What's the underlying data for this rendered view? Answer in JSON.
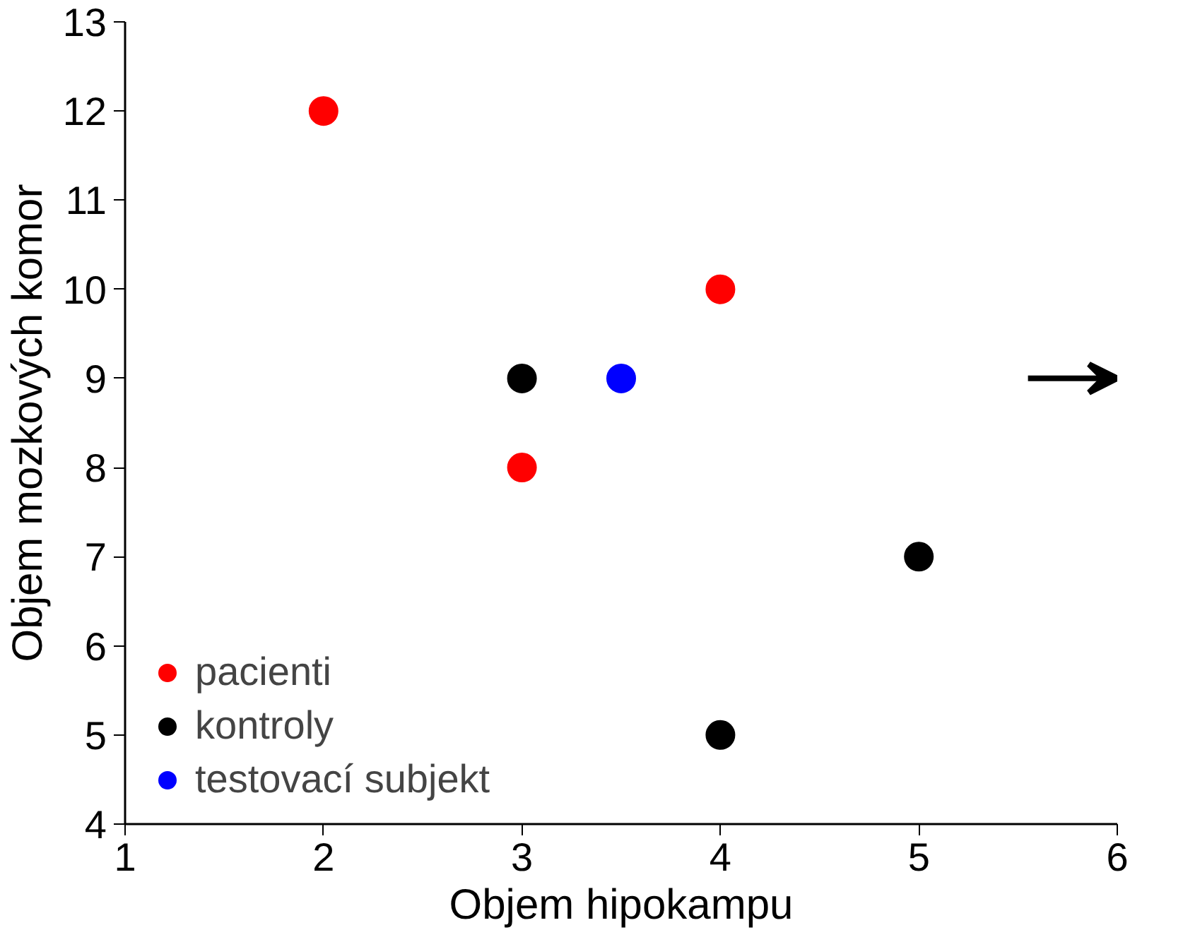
{
  "chart_data": {
    "type": "scatter",
    "xlabel": "Objem hipokampu",
    "ylabel": "Objem mozkových komor",
    "xlim": [
      1,
      6
    ],
    "xticks": [
      1,
      2,
      3,
      4,
      5,
      6
    ],
    "ylim": [
      4,
      13
    ],
    "yticks": [
      4,
      5,
      6,
      7,
      8,
      9,
      10,
      11,
      12,
      13
    ],
    "grid": false,
    "legend": "bottom left",
    "marker": "circle",
    "series": [
      {
        "name": "pacienti",
        "color": "#ff0000",
        "x": [
          2,
          4,
          3
        ],
        "values": [
          12,
          10,
          8
        ]
      },
      {
        "name": "kontroly",
        "color": "#000000",
        "x": [
          3,
          5,
          4
        ],
        "values": [
          9,
          7,
          5
        ]
      },
      {
        "name": "testovací subjekt",
        "color": "#0000ff",
        "x": [
          3.5
        ],
        "values": [
          9
        ]
      }
    ]
  }
}
